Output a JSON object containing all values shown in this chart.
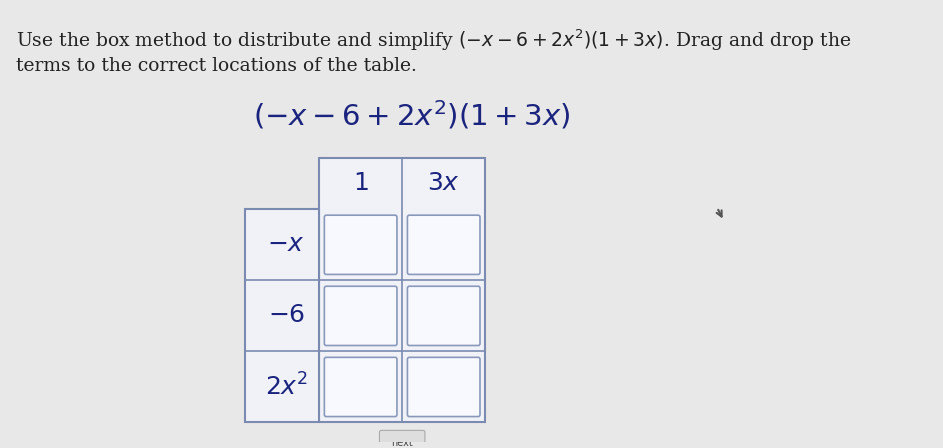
{
  "background_color": "#e8e8e8",
  "title_line1": "Use the box method to distribute and simplify $(-x - 6 + 2x^2)(1 + 3x)$. Drag and drop the",
  "title_line2": "terms to the correct locations of the table.",
  "formula_text": "$\\left(-x-6+2x^2\\right)\\left(1+3x\\right)$",
  "col_headers": [
    "$1$",
    "$3x$"
  ],
  "row_headers": [
    "$-x$",
    "$-6$",
    "$2x^2$"
  ],
  "text_color": "#1a237e",
  "title_color": "#222222",
  "cell_fill": "#f8f8ff",
  "table_fill": "#f0f2f8",
  "border_color": "#7a8ab0",
  "cell_border_color": "#8899bb",
  "title_fontsize": 13.5,
  "formula_fontsize": 21,
  "header_fontsize": 18,
  "row_label_fontsize": 18
}
